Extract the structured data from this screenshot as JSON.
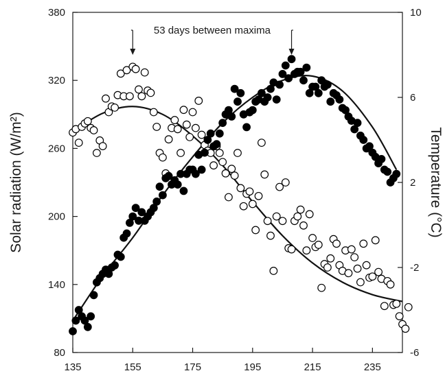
{
  "chart_data": {
    "type": "scatter",
    "title": "",
    "xlabel": "",
    "ylabel": "Solar radiation (W/m²)",
    "y2label": "Temperature (°C)",
    "xlim": [
      135,
      245
    ],
    "ylim": [
      80,
      380
    ],
    "y2lim": [
      -6,
      10
    ],
    "xticks": [
      "135",
      "155",
      "175",
      "195",
      "215",
      "235"
    ],
    "yticks": [
      "80",
      "140",
      "200",
      "260",
      "320",
      "380"
    ],
    "y2ticks": [
      "-6",
      "-2",
      "2",
      "6",
      "10"
    ],
    "grid": false,
    "legend": "none",
    "annotation": {
      "text": "53 days between maxima",
      "arrow_days": [
        155,
        208
      ]
    },
    "series": [
      {
        "marker": "open-circle",
        "axis": "left",
        "points": [
          [
            135,
            274
          ],
          [
            136,
            277
          ],
          [
            137,
            265
          ],
          [
            138,
            279
          ],
          [
            139,
            282
          ],
          [
            140,
            284
          ],
          [
            141,
            278
          ],
          [
            142,
            276
          ],
          [
            143,
            256
          ],
          [
            144,
            267
          ],
          [
            145,
            262
          ],
          [
            146,
            304
          ],
          [
            147,
            292
          ],
          [
            148,
            297
          ],
          [
            149,
            296
          ],
          [
            150,
            307
          ],
          [
            151,
            326
          ],
          [
            152,
            306
          ],
          [
            153,
            329
          ],
          [
            154,
            306
          ],
          [
            155,
            332
          ],
          [
            156,
            330
          ],
          [
            157,
            312
          ],
          [
            158,
            306
          ],
          [
            159,
            327
          ],
          [
            160,
            311
          ],
          [
            161,
            309
          ],
          [
            162,
            292
          ],
          [
            163,
            279
          ],
          [
            164,
            256
          ],
          [
            165,
            252
          ],
          [
            166,
            238
          ],
          [
            167,
            268
          ],
          [
            168,
            278
          ],
          [
            169,
            285
          ],
          [
            170,
            277
          ],
          [
            171,
            256
          ],
          [
            172,
            294
          ],
          [
            173,
            281
          ],
          [
            174,
            270
          ],
          [
            175,
            292
          ],
          [
            176,
            278
          ],
          [
            177,
            302
          ],
          [
            178,
            272
          ],
          [
            179,
            263
          ],
          [
            180,
            258
          ],
          [
            181,
            256
          ],
          [
            182,
            245
          ],
          [
            183,
            262
          ],
          [
            184,
            256
          ],
          [
            185,
            248
          ],
          [
            186,
            238
          ],
          [
            187,
            217
          ],
          [
            188,
            242
          ],
          [
            189,
            236
          ],
          [
            190,
            256
          ],
          [
            191,
            225
          ],
          [
            192,
            209
          ],
          [
            193,
            220
          ],
          [
            194,
            222
          ],
          [
            195,
            211
          ],
          [
            196,
            188
          ],
          [
            197,
            218
          ],
          [
            198,
            265
          ],
          [
            199,
            237
          ],
          [
            200,
            196
          ],
          [
            201,
            183
          ],
          [
            202,
            152
          ],
          [
            203,
            200
          ],
          [
            204,
            226
          ],
          [
            205,
            196
          ],
          [
            206,
            230
          ],
          [
            207,
            172
          ],
          [
            208,
            171
          ],
          [
            209,
            196
          ],
          [
            210,
            200
          ],
          [
            211,
            206
          ],
          [
            212,
            192
          ],
          [
            213,
            170
          ],
          [
            214,
            202
          ],
          [
            215,
            181
          ],
          [
            216,
            173
          ],
          [
            217,
            175
          ],
          [
            218,
            137
          ],
          [
            219,
            158
          ],
          [
            220,
            155
          ],
          [
            221,
            163
          ],
          [
            222,
            180
          ],
          [
            223,
            176
          ],
          [
            224,
            157
          ],
          [
            225,
            152
          ],
          [
            226,
            170
          ],
          [
            227,
            150
          ],
          [
            228,
            171
          ],
          [
            229,
            164
          ],
          [
            230,
            154
          ],
          [
            231,
            142
          ],
          [
            232,
            176
          ],
          [
            233,
            157
          ],
          [
            234,
            146
          ],
          [
            235,
            147
          ],
          [
            236,
            179
          ],
          [
            237,
            151
          ],
          [
            238,
            145
          ],
          [
            239,
            121
          ],
          [
            240,
            143
          ],
          [
            241,
            140
          ],
          [
            242,
            122
          ],
          [
            243,
            123
          ],
          [
            244,
            112
          ],
          [
            245,
            105
          ],
          [
            246,
            101
          ],
          [
            247,
            120
          ]
        ]
      },
      {
        "marker": "filled-circle",
        "axis": "right",
        "points": [
          [
            135,
            -5
          ],
          [
            136,
            -4.5
          ],
          [
            137,
            -4
          ],
          [
            138,
            -4.3
          ],
          [
            139,
            -4.5
          ],
          [
            140,
            -4.8
          ],
          [
            141,
            -4.3
          ],
          [
            142,
            -3.3
          ],
          [
            143,
            -2.7
          ],
          [
            144,
            -2.5
          ],
          [
            145,
            -2.3
          ],
          [
            146,
            -2.1
          ],
          [
            147,
            -2.3
          ],
          [
            148,
            -2
          ],
          [
            149,
            -1.9
          ],
          [
            150,
            -1.4
          ],
          [
            151,
            -1.5
          ],
          [
            152,
            -0.6
          ],
          [
            153,
            -0.4
          ],
          [
            154,
            0.1
          ],
          [
            155,
            0.4
          ],
          [
            156,
            0.8
          ],
          [
            157,
            0.2
          ],
          [
            158,
            0.6
          ],
          [
            159,
            0.2
          ],
          [
            160,
            0.4
          ],
          [
            161,
            0.6
          ],
          [
            162,
            0.8
          ],
          [
            163,
            1.1
          ],
          [
            164,
            1.8
          ],
          [
            165,
            1.4
          ],
          [
            166,
            2.2
          ],
          [
            167,
            2.3
          ],
          [
            168,
            1.9
          ],
          [
            169,
            2.1
          ],
          [
            170,
            1.9
          ],
          [
            171,
            2.4
          ],
          [
            172,
            1.6
          ],
          [
            173,
            2.4
          ],
          [
            174,
            2.6
          ],
          [
            175,
            2.6
          ],
          [
            176,
            2.4
          ],
          [
            177,
            3.3
          ],
          [
            178,
            2.6
          ],
          [
            179,
            3.4
          ],
          [
            180,
            4
          ],
          [
            181,
            4.3
          ],
          [
            182,
            3.7
          ],
          [
            183,
            3.8
          ],
          [
            184,
            4.3
          ],
          [
            185,
            4.8
          ],
          [
            186,
            5.2
          ],
          [
            187,
            5.4
          ],
          [
            188,
            5.1
          ],
          [
            189,
            6.4
          ],
          [
            190,
            5.8
          ],
          [
            191,
            6.2
          ],
          [
            192,
            5.2
          ],
          [
            193,
            4.6
          ],
          [
            194,
            5.3
          ],
          [
            195,
            5.4
          ],
          [
            196,
            5.8
          ],
          [
            197,
            5.9
          ],
          [
            198,
            6.2
          ],
          [
            199,
            5.8
          ],
          [
            200,
            6
          ],
          [
            201,
            6.4
          ],
          [
            202,
            6.7
          ],
          [
            203,
            5.9
          ],
          [
            204,
            6.6
          ],
          [
            205,
            7.1
          ],
          [
            206,
            7.5
          ],
          [
            207,
            6.9
          ],
          [
            208,
            7.8
          ],
          [
            209,
            7.1
          ],
          [
            210,
            7.2
          ],
          [
            211,
            7.2
          ],
          [
            212,
            6.8
          ],
          [
            213,
            7.4
          ],
          [
            214,
            6.2
          ],
          [
            215,
            6.5
          ],
          [
            216,
            6.5
          ],
          [
            217,
            6.2
          ],
          [
            218,
            6.8
          ],
          [
            219,
            6.5
          ],
          [
            220,
            6.6
          ],
          [
            221,
            5.8
          ],
          [
            222,
            6.2
          ],
          [
            223,
            6.1
          ],
          [
            224,
            5.9
          ],
          [
            225,
            5.5
          ],
          [
            226,
            5.4
          ],
          [
            227,
            5.1
          ],
          [
            228,
            4.9
          ],
          [
            229,
            4.5
          ],
          [
            230,
            4.8
          ],
          [
            231,
            4.2
          ],
          [
            232,
            4
          ],
          [
            233,
            3.6
          ],
          [
            234,
            3.7
          ],
          [
            235,
            3.4
          ],
          [
            236,
            3.2
          ],
          [
            237,
            2.9
          ],
          [
            238,
            3.1
          ],
          [
            239,
            2.6
          ],
          [
            240,
            2.5
          ],
          [
            241,
            2
          ],
          [
            242,
            2.2
          ],
          [
            243,
            2.4
          ]
        ]
      }
    ],
    "fit_curves": [
      {
        "fits": "open-circle",
        "axis": "left",
        "points": [
          [
            135,
            275
          ],
          [
            145,
            291
          ],
          [
            155,
            297
          ],
          [
            165,
            290
          ],
          [
            175,
            271
          ],
          [
            185,
            245
          ],
          [
            195,
            213
          ],
          [
            205,
            183
          ],
          [
            215,
            159
          ],
          [
            225,
            142
          ],
          [
            235,
            131
          ],
          [
            245,
            125
          ]
        ]
      },
      {
        "fits": "filled-circle",
        "axis": "right",
        "points": [
          [
            135,
            -4.5
          ],
          [
            145,
            -2.4
          ],
          [
            155,
            -0.6
          ],
          [
            165,
            1.4
          ],
          [
            175,
            3.2
          ],
          [
            185,
            4.8
          ],
          [
            195,
            6
          ],
          [
            205,
            6.8
          ],
          [
            215,
            7
          ],
          [
            225,
            6.3
          ],
          [
            235,
            4.6
          ],
          [
            243,
            2.6
          ]
        ]
      }
    ]
  }
}
